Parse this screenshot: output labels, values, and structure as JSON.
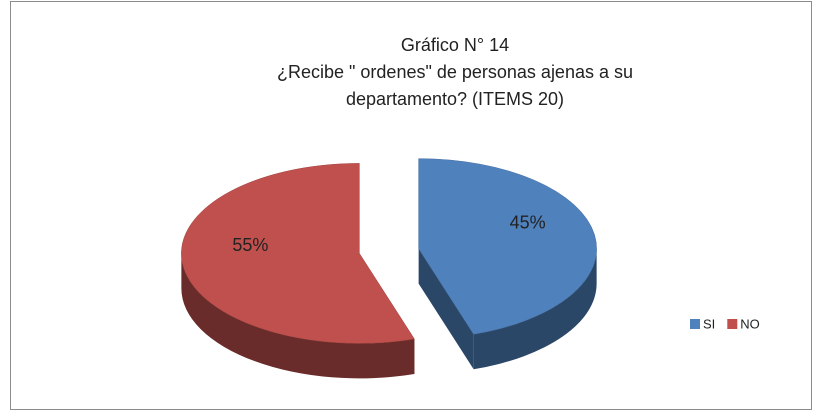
{
  "chart_data": {
    "type": "pie",
    "title": [
      "Gráfico N° 14",
      "¿Recibe \" ordenes\" de personas ajenas a su",
      "departamento? (ITEMS 20)"
    ],
    "categories": [
      "SI",
      "NO"
    ],
    "values": [
      45,
      55
    ],
    "value_labels": [
      "45%",
      "55%"
    ],
    "colors": [
      "#4f81bd",
      "#c0504d"
    ],
    "legend": "right"
  }
}
